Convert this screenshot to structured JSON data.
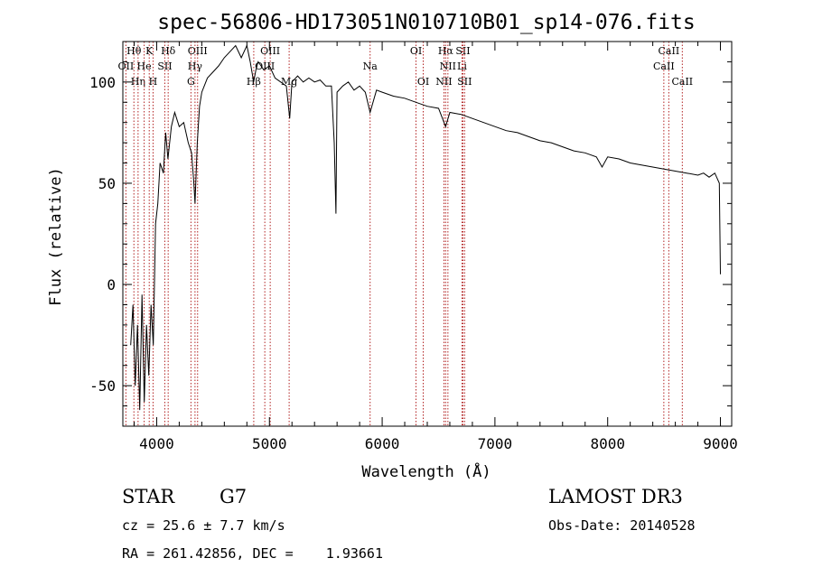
{
  "chart_data": {
    "type": "line",
    "title": "spec-56806-HD173051N010710B01_sp14-076.fits",
    "xlabel": "Wavelength (Å)",
    "ylabel": "Flux (relative)",
    "xlim": [
      3700,
      9100
    ],
    "ylim": [
      -70,
      120
    ],
    "xticks": [
      4000,
      5000,
      6000,
      7000,
      8000,
      9000
    ],
    "yticks": [
      -50,
      0,
      50,
      100
    ],
    "series": [
      {
        "name": "flux",
        "x": [
          3770,
          3790,
          3810,
          3830,
          3850,
          3870,
          3890,
          3910,
          3930,
          3950,
          3970,
          3990,
          4010,
          4030,
          4060,
          4080,
          4100,
          4130,
          4160,
          4200,
          4240,
          4280,
          4310,
          4330,
          4340,
          4360,
          4380,
          4400,
          4450,
          4500,
          4550,
          4600,
          4650,
          4700,
          4750,
          4800,
          4830,
          4860,
          4880,
          4900,
          4950,
          5000,
          5050,
          5100,
          5150,
          5180,
          5200,
          5250,
          5300,
          5350,
          5400,
          5450,
          5500,
          5550,
          5575,
          5590,
          5600,
          5650,
          5700,
          5750,
          5800,
          5850,
          5893,
          5950,
          6000,
          6100,
          6200,
          6300,
          6400,
          6500,
          6563,
          6600,
          6700,
          6800,
          6900,
          7000,
          7100,
          7200,
          7300,
          7400,
          7500,
          7600,
          7700,
          7800,
          7900,
          7950,
          8000,
          8100,
          8200,
          8300,
          8400,
          8500,
          8600,
          8700,
          8800,
          8850,
          8900,
          8950,
          8990,
          9000
        ],
        "y": [
          -30,
          -10,
          -50,
          -20,
          -62,
          -5,
          -58,
          -20,
          -45,
          -10,
          -30,
          30,
          40,
          60,
          55,
          75,
          62,
          78,
          85,
          78,
          80,
          70,
          65,
          50,
          40,
          70,
          88,
          95,
          102,
          105,
          108,
          112,
          115,
          118,
          112,
          118,
          110,
          100,
          106,
          110,
          106,
          108,
          102,
          100,
          98,
          82,
          100,
          103,
          100,
          102,
          100,
          101,
          98,
          98,
          70,
          35,
          95,
          98,
          100,
          96,
          98,
          95,
          85,
          96,
          95,
          93,
          92,
          90,
          88,
          87,
          78,
          85,
          84,
          82,
          80,
          78,
          76,
          75,
          73,
          71,
          70,
          68,
          66,
          65,
          63,
          58,
          63,
          62,
          60,
          59,
          58,
          57,
          56,
          55,
          54,
          55,
          53,
          55,
          50,
          5
        ]
      }
    ],
    "lines": [
      {
        "label": "Hθ",
        "x": 3798,
        "row": 0
      },
      {
        "label": "OII",
        "x": 3727,
        "row": 1
      },
      {
        "label": "Hη",
        "x": 3835,
        "row": 2
      },
      {
        "label": "He",
        "x": 3889,
        "row": 1
      },
      {
        "label": "K",
        "x": 3934,
        "row": 0
      },
      {
        "label": "H",
        "x": 3968,
        "row": 2
      },
      {
        "label": "Hδ",
        "x": 4102,
        "row": 0
      },
      {
        "label": "SII",
        "x": 4072,
        "row": 1
      },
      {
        "label": "OIII",
        "x": 4363,
        "row": 0
      },
      {
        "label": "Hγ",
        "x": 4340,
        "row": 1
      },
      {
        "label": "G",
        "x": 4304,
        "row": 2
      },
      {
        "label": "OIII",
        "x": 5007,
        "row": 0
      },
      {
        "label": "OIII",
        "x": 4959,
        "row": 1
      },
      {
        "label": "Hβ",
        "x": 4861,
        "row": 2
      },
      {
        "label": "Mg",
        "x": 5175,
        "row": 2
      },
      {
        "label": "Na",
        "x": 5893,
        "row": 1
      },
      {
        "label": "OI",
        "x": 6300,
        "row": 0
      },
      {
        "label": "OI",
        "x": 6364,
        "row": 2
      },
      {
        "label": "Hα",
        "x": 6563,
        "row": 0
      },
      {
        "label": "SII",
        "x": 6716,
        "row": 0
      },
      {
        "label": "NII",
        "x": 6583,
        "row": 1
      },
      {
        "label": "Li",
        "x": 6708,
        "row": 1
      },
      {
        "label": "NII",
        "x": 6548,
        "row": 2
      },
      {
        "label": "SII",
        "x": 6731,
        "row": 2
      },
      {
        "label": "CaII",
        "x": 8542,
        "row": 0
      },
      {
        "label": "CaII",
        "x": 8498,
        "row": 1
      },
      {
        "label": "CaII",
        "x": 8662,
        "row": 2
      }
    ],
    "line_color": "#b22222"
  },
  "info": {
    "object_class": "STAR",
    "subclass": "G7",
    "survey": "LAMOST DR3",
    "cz": "cz = 25.6 ± 7.7 km/s",
    "obs_date": "Obs-Date: 20140528",
    "coords": "RA = 261.42856, DEC =    1.93661"
  }
}
